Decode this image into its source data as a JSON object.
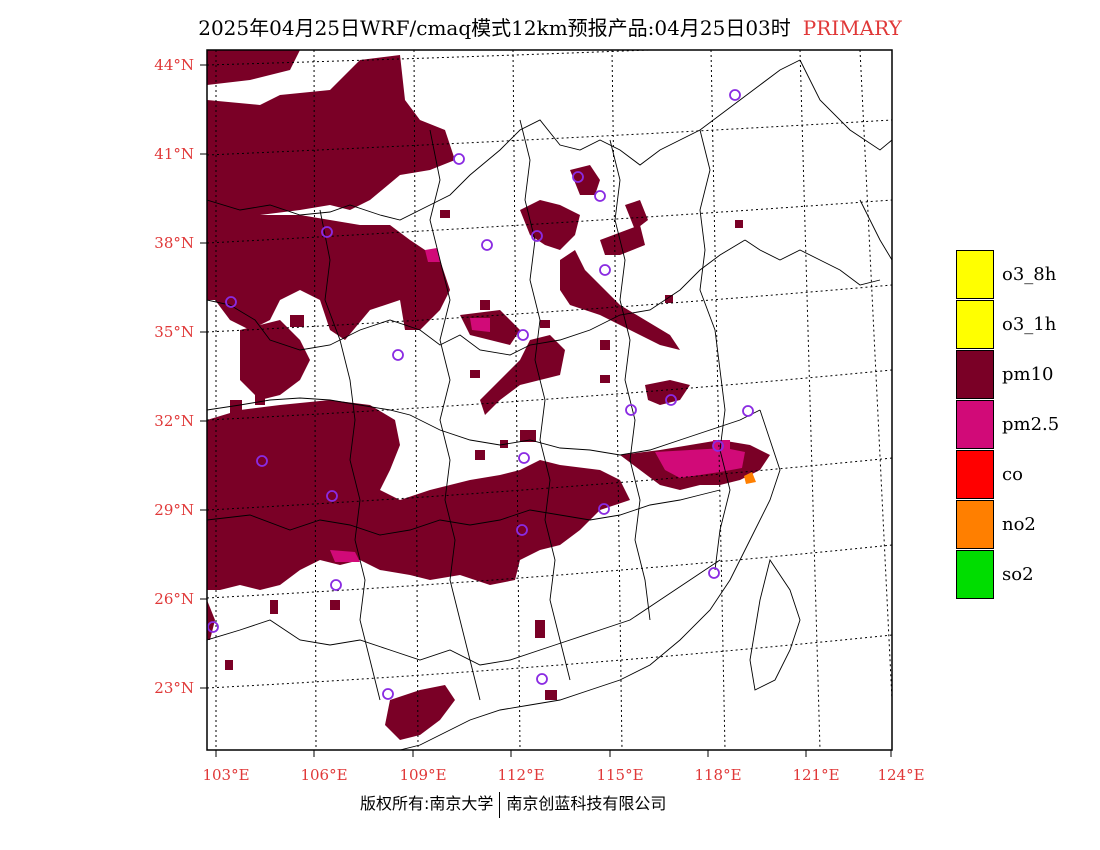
{
  "title": {
    "main": "2025年04月25日WRF/cmaq模式12km预报产品:04月25日03时",
    "tag": "PRIMARY"
  },
  "axes": {
    "lat_labels": [
      "44°N",
      "41°N",
      "38°N",
      "35°N",
      "32°N",
      "29°N",
      "26°N",
      "23°N"
    ],
    "lon_labels": [
      "103°E",
      "106°E",
      "109°E",
      "112°E",
      "115°E",
      "118°E",
      "121°E",
      "124°E"
    ]
  },
  "legend": {
    "items": [
      {
        "label": "o3_8h",
        "color": "#ffff00"
      },
      {
        "label": "o3_1h",
        "color": "#ffff00"
      },
      {
        "label": "pm10",
        "color": "#7a0026"
      },
      {
        "label": "pm2.5",
        "color": "#d10a78"
      },
      {
        "label": "co",
        "color": "#ff0000"
      },
      {
        "label": "no2",
        "color": "#ff7f00"
      },
      {
        "label": "so2",
        "color": "#00dd00"
      }
    ]
  },
  "colors": {
    "pm10": "#7a0026",
    "pm25": "#d10a78",
    "no2": "#ff7f00",
    "station": "#8a2be2",
    "label": "#e03838"
  },
  "footer": {
    "left": "版权所有:南京大学",
    "right": "南京创蓝科技有限公司"
  }
}
